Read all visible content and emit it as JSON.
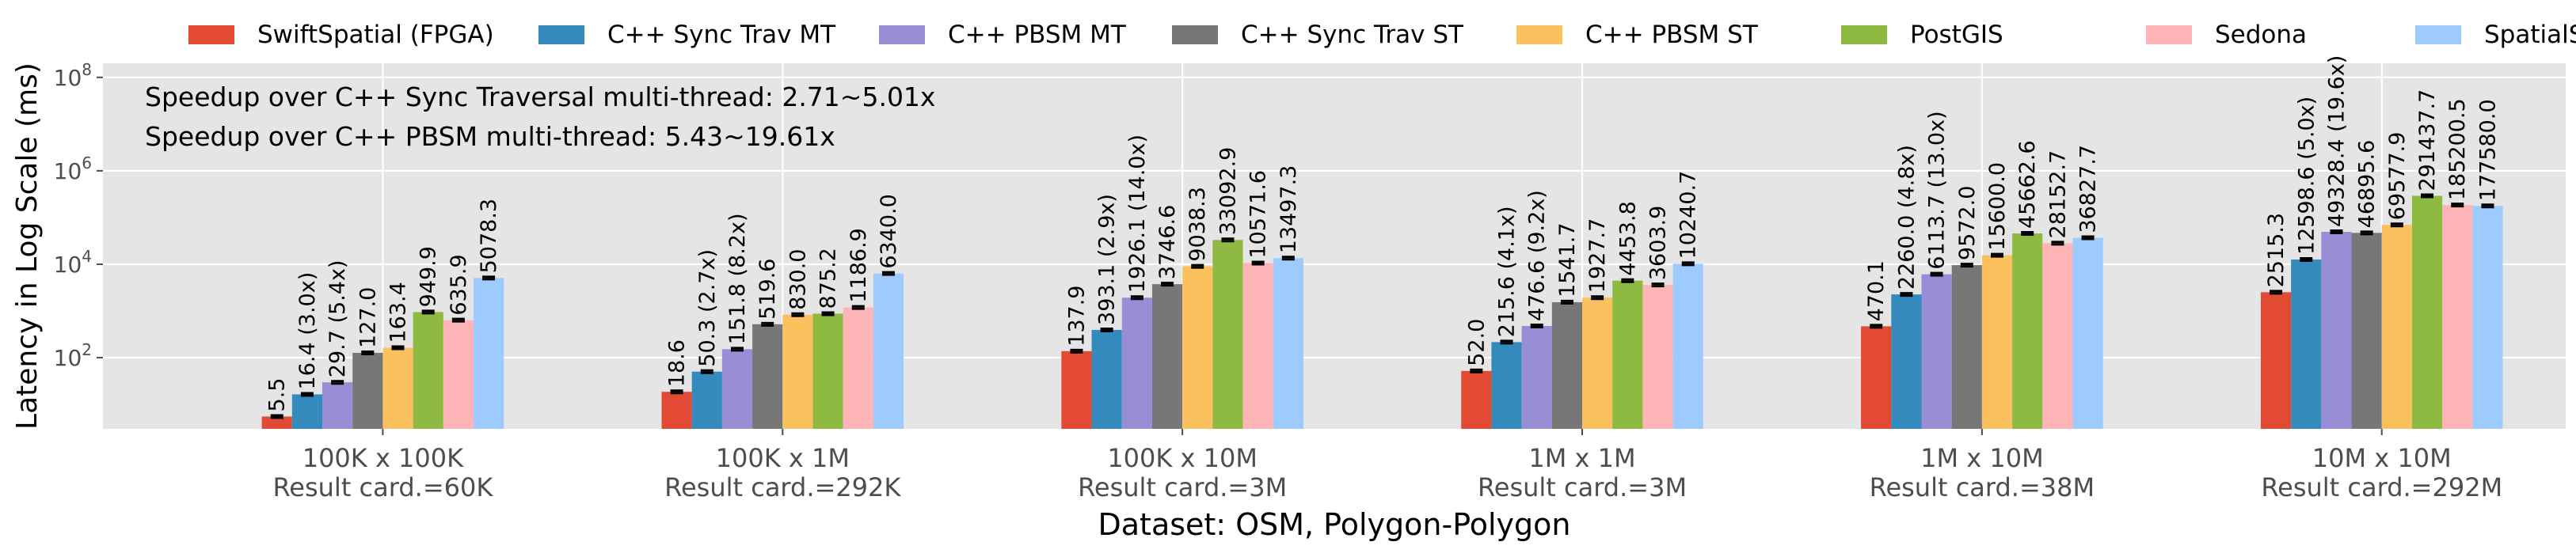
{
  "chart_data": {
    "type": "bar",
    "xlabel": "Dataset: OSM, Polygon-Polygon",
    "ylabel": "Latency in Log Scale (ms)",
    "yscale": "log",
    "ylim": [
      3,
      200000000
    ],
    "yticks": [
      100,
      10000,
      1000000,
      100000000
    ],
    "grid": true,
    "legend_position": "top",
    "annotations": [
      "Speedup over C++ Sync Traversal multi-thread: 2.71~5.01x",
      "Speedup over C++ PBSM multi-thread: 5.43~19.61x"
    ],
    "categories": [
      {
        "line1": "100K x 100K",
        "line2": "Result card.=60K"
      },
      {
        "line1": "100K x 1M",
        "line2": "Result card.=292K"
      },
      {
        "line1": "100K x 10M",
        "line2": "Result card.=3M"
      },
      {
        "line1": "1M x 1M",
        "line2": "Result card.=3M"
      },
      {
        "line1": "1M x 10M",
        "line2": "Result card.=38M"
      },
      {
        "line1": "10M x 10M",
        "line2": "Result card.=292M"
      }
    ],
    "series": [
      {
        "name": "SwiftSpatial (FPGA)",
        "color": "#e24a33",
        "values": [
          5.5,
          18.6,
          137.9,
          52.0,
          470.1,
          2515.3
        ],
        "labels": [
          "5.5",
          "18.6",
          "137.9",
          "52.0",
          "470.1",
          "2515.3"
        ]
      },
      {
        "name": "C++ Sync Trav MT",
        "color": "#348abd",
        "values": [
          16.4,
          50.3,
          393.1,
          215.6,
          2260.0,
          12598.6
        ],
        "labels": [
          "16.4 (3.0x)",
          "50.3 (2.7x)",
          "393.1 (2.9x)",
          "215.6 (4.1x)",
          "2260.0 (4.8x)",
          "12598.6 (5.0x)"
        ]
      },
      {
        "name": "C++ PBSM MT",
        "color": "#988ed5",
        "values": [
          29.7,
          151.8,
          1926.1,
          476.6,
          6113.7,
          49328.4
        ],
        "labels": [
          "29.7 (5.4x)",
          "151.8 (8.2x)",
          "1926.1 (14.0x)",
          "476.6 (9.2x)",
          "6113.7 (13.0x)",
          "49328.4 (19.6x)"
        ]
      },
      {
        "name": "C++ Sync Trav ST",
        "color": "#777777",
        "values": [
          127.0,
          519.6,
          3746.6,
          1541.7,
          9572.0,
          46895.6
        ],
        "labels": [
          "127.0",
          "519.6",
          "3746.6",
          "1541.7",
          "9572.0",
          "46895.6"
        ]
      },
      {
        "name": "C++ PBSM ST",
        "color": "#fbc15e",
        "values": [
          163.4,
          830.0,
          9038.3,
          1927.7,
          15600.0,
          69577.9
        ],
        "labels": [
          "163.4",
          "830.0",
          "9038.3",
          "1927.7",
          "15600.0",
          "69577.9"
        ]
      },
      {
        "name": "PostGIS",
        "color": "#8eba42",
        "values": [
          949.9,
          875.2,
          33092.9,
          4453.8,
          45662.6,
          291437.7
        ],
        "labels": [
          "949.9",
          "875.2",
          "33092.9",
          "4453.8",
          "45662.6",
          "291437.7"
        ]
      },
      {
        "name": "Sedona",
        "color": "#ffb5b8",
        "values": [
          635.9,
          1186.9,
          10571.6,
          3603.9,
          28152.7,
          185200.5
        ],
        "labels": [
          "635.9",
          "1186.9",
          "10571.6",
          "3603.9",
          "28152.7",
          "185200.5"
        ]
      },
      {
        "name": "SpatialSpark",
        "color": "#9ecbff",
        "values": [
          5078.3,
          6340.0,
          13497.3,
          10240.7,
          36827.7,
          177580.0
        ],
        "labels": [
          "5078.3",
          "6340.0",
          "13497.3",
          "10240.7",
          "36827.7",
          "177580.0"
        ]
      }
    ]
  }
}
